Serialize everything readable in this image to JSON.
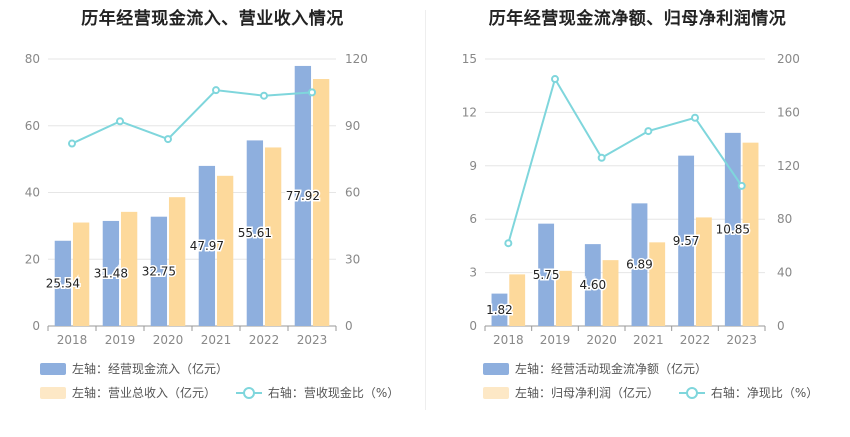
{
  "chart_data": [
    {
      "type": "bar",
      "title": "历年经营现金流入、营业收入情况",
      "categories": [
        "2018",
        "2019",
        "2020",
        "2021",
        "2022",
        "2023"
      ],
      "left_axis": {
        "ylim": [
          0,
          80
        ],
        "ticks": [
          0,
          20,
          40,
          60,
          80
        ]
      },
      "right_axis": {
        "ylim": [
          0,
          120
        ],
        "ticks": [
          0,
          30,
          60,
          90,
          120
        ]
      },
      "series": [
        {
          "name": "左轴：经营现金流入（亿元）",
          "type": "bar",
          "axis": "left",
          "values": [
            25.54,
            31.48,
            32.75,
            47.97,
            55.61,
            77.92
          ],
          "labels": [
            "25.54",
            "31.48",
            "32.75",
            "47.97",
            "55.61",
            "77.92"
          ],
          "color": "#8eafde"
        },
        {
          "name": "左轴：营业总收入（亿元）",
          "type": "bar",
          "axis": "left",
          "values": [
            31,
            34.2,
            38.6,
            45,
            53.5,
            74
          ],
          "color": "#fdd99b"
        },
        {
          "name": "右轴：营收现金比（%）",
          "type": "line",
          "axis": "right",
          "values": [
            82,
            92,
            84,
            106,
            103.5,
            105
          ],
          "color": "#7fd6dc"
        }
      ]
    },
    {
      "type": "bar",
      "title": "历年经营现金流净额、归母净利润情况",
      "categories": [
        "2018",
        "2019",
        "2020",
        "2021",
        "2022",
        "2023"
      ],
      "left_axis": {
        "ylim": [
          0,
          15
        ],
        "ticks": [
          0,
          3,
          6,
          9,
          12,
          15
        ]
      },
      "right_axis": {
        "ylim": [
          0,
          200
        ],
        "ticks": [
          0,
          40,
          80,
          120,
          160,
          200
        ]
      },
      "series": [
        {
          "name": "左轴：经营活动现金流净额（亿元）",
          "type": "bar",
          "axis": "left",
          "values": [
            1.82,
            5.75,
            4.6,
            6.89,
            9.57,
            10.85
          ],
          "labels": [
            "1.82",
            "5.75",
            "4.60",
            "6.89",
            "9.57",
            "10.85"
          ],
          "color": "#8eafde"
        },
        {
          "name": "左轴：归母净利润（亿元）",
          "type": "bar",
          "axis": "left",
          "values": [
            2.9,
            3.1,
            3.7,
            4.7,
            6.1,
            10.3
          ],
          "color": "#fdd99b"
        },
        {
          "name": "右轴：净现比（%）",
          "type": "line",
          "axis": "right",
          "values": [
            62,
            185,
            126,
            146,
            156,
            105
          ],
          "color": "#7fd6dc"
        }
      ]
    }
  ]
}
